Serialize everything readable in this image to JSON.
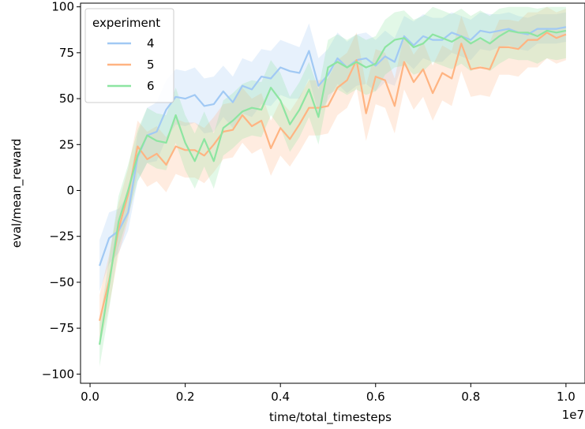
{
  "chart_data": {
    "type": "line",
    "title": "",
    "xlabel": "time/total_timesteps",
    "ylabel": "eval/mean_reward",
    "x_offset_label": "1e7",
    "xlim": [
      -0.02,
      1.04
    ],
    "ylim": [
      -105,
      102
    ],
    "xticks": [
      0.0,
      0.2,
      0.4,
      0.6,
      0.8,
      1.0
    ],
    "xtick_labels": [
      "0.0",
      "0.2",
      "0.4",
      "0.6",
      "0.8",
      "1.0"
    ],
    "yticks": [
      -100,
      -75,
      -50,
      -25,
      0,
      25,
      50,
      75,
      100
    ],
    "ytick_labels": [
      "−100",
      "−75",
      "−50",
      "−25",
      "0",
      "25",
      "50",
      "75",
      "100"
    ],
    "grid": false,
    "legend": {
      "title": "experiment",
      "placement": "top-left"
    },
    "x": [
      0.02,
      0.04,
      0.06,
      0.08,
      0.1,
      0.12,
      0.14,
      0.16,
      0.18,
      0.2,
      0.22,
      0.24,
      0.26,
      0.28,
      0.3,
      0.32,
      0.34,
      0.36,
      0.38,
      0.4,
      0.42,
      0.44,
      0.46,
      0.48,
      0.5,
      0.52,
      0.54,
      0.56,
      0.58,
      0.6,
      0.62,
      0.64,
      0.66,
      0.68,
      0.7,
      0.72,
      0.74,
      0.76,
      0.78,
      0.8,
      0.82,
      0.84,
      0.86,
      0.88,
      0.9,
      0.92,
      0.94,
      0.96,
      0.98,
      1.0
    ],
    "series": [
      {
        "name": "4",
        "color": "#a1c9f4",
        "values": [
          -41,
          -26,
          -22,
          -12,
          18,
          30,
          32,
          44,
          51,
          50,
          52,
          46,
          47,
          54,
          48,
          57,
          55,
          62,
          61,
          67,
          65,
          64,
          76,
          57,
          63,
          72,
          67,
          71,
          72,
          68,
          73,
          70,
          84,
          79,
          84,
          82,
          82,
          86,
          84,
          82,
          87,
          86,
          87,
          88,
          86,
          85,
          88,
          88,
          88,
          89
        ],
        "lower": [
          -55,
          -40,
          -34,
          -22,
          5,
          15,
          16,
          28,
          36,
          35,
          37,
          31,
          32,
          40,
          34,
          42,
          40,
          47,
          46,
          52,
          50,
          50,
          61,
          42,
          49,
          58,
          53,
          57,
          58,
          54,
          59,
          57,
          71,
          66,
          72,
          70,
          70,
          75,
          73,
          71,
          77,
          76,
          78,
          79,
          77,
          76,
          80,
          80,
          80,
          81
        ],
        "upper": [
          -27,
          -12,
          -10,
          -2,
          31,
          45,
          48,
          60,
          66,
          65,
          67,
          61,
          62,
          68,
          62,
          72,
          70,
          77,
          76,
          82,
          80,
          78,
          91,
          72,
          77,
          86,
          81,
          85,
          86,
          82,
          87,
          83,
          95,
          92,
          96,
          94,
          94,
          97,
          95,
          93,
          97,
          96,
          96,
          97,
          95,
          94,
          96,
          96,
          96,
          97
        ]
      },
      {
        "name": "5",
        "color": "#ffb482",
        "values": [
          -71,
          -49,
          -21,
          -2,
          24,
          17,
          20,
          14,
          24,
          22,
          22,
          19,
          25,
          32,
          33,
          41,
          35,
          38,
          23,
          34,
          28,
          36,
          45,
          45,
          46,
          56,
          60,
          71,
          42,
          62,
          60,
          46,
          70,
          59,
          66,
          53,
          64,
          61,
          80,
          66,
          67,
          66,
          78,
          78,
          77,
          82,
          82,
          86,
          83,
          85
        ],
        "lower": [
          -85,
          -63,
          -35,
          -16,
          10,
          2,
          5,
          -1,
          9,
          7,
          7,
          4,
          10,
          17,
          18,
          26,
          20,
          23,
          8,
          19,
          13,
          21,
          30,
          30,
          31,
          41,
          45,
          56,
          27,
          47,
          45,
          31,
          55,
          44,
          51,
          38,
          49,
          46,
          65,
          51,
          52,
          51,
          63,
          63,
          62,
          67,
          67,
          72,
          69,
          71
        ],
        "upper": [
          -57,
          -35,
          -7,
          12,
          38,
          32,
          35,
          29,
          39,
          37,
          37,
          34,
          40,
          47,
          48,
          56,
          50,
          53,
          38,
          49,
          43,
          51,
          60,
          60,
          61,
          71,
          75,
          86,
          57,
          77,
          75,
          61,
          85,
          74,
          81,
          68,
          79,
          76,
          95,
          81,
          82,
          81,
          93,
          93,
          92,
          97,
          97,
          100,
          97,
          99
        ]
      },
      {
        "name": "6",
        "color": "#8de5a1",
        "values": [
          -84,
          -51,
          -17,
          0,
          19,
          30,
          27,
          26,
          41,
          26,
          16,
          28,
          16,
          34,
          38,
          43,
          45,
          44,
          56,
          49,
          36,
          44,
          55,
          40,
          67,
          70,
          67,
          70,
          67,
          69,
          78,
          82,
          83,
          78,
          80,
          85,
          83,
          81,
          84,
          80,
          83,
          80,
          84,
          87,
          86,
          86,
          84,
          87,
          86,
          87
        ],
        "lower": [
          -96,
          -65,
          -31,
          -14,
          5,
          15,
          12,
          11,
          26,
          11,
          1,
          13,
          1,
          19,
          23,
          28,
          30,
          29,
          41,
          34,
          21,
          29,
          40,
          25,
          52,
          55,
          52,
          55,
          52,
          54,
          63,
          67,
          68,
          63,
          65,
          70,
          68,
          66,
          69,
          65,
          68,
          65,
          69,
          72,
          71,
          71,
          69,
          72,
          71,
          72
        ],
        "upper": [
          -72,
          -37,
          -3,
          14,
          33,
          45,
          42,
          41,
          56,
          41,
          31,
          43,
          31,
          49,
          53,
          58,
          60,
          59,
          71,
          64,
          51,
          59,
          70,
          55,
          82,
          85,
          82,
          85,
          82,
          84,
          93,
          97,
          98,
          93,
          95,
          100,
          98,
          96,
          99,
          95,
          98,
          95,
          99,
          100,
          100,
          100,
          99,
          100,
          100,
          100
        ]
      }
    ]
  }
}
